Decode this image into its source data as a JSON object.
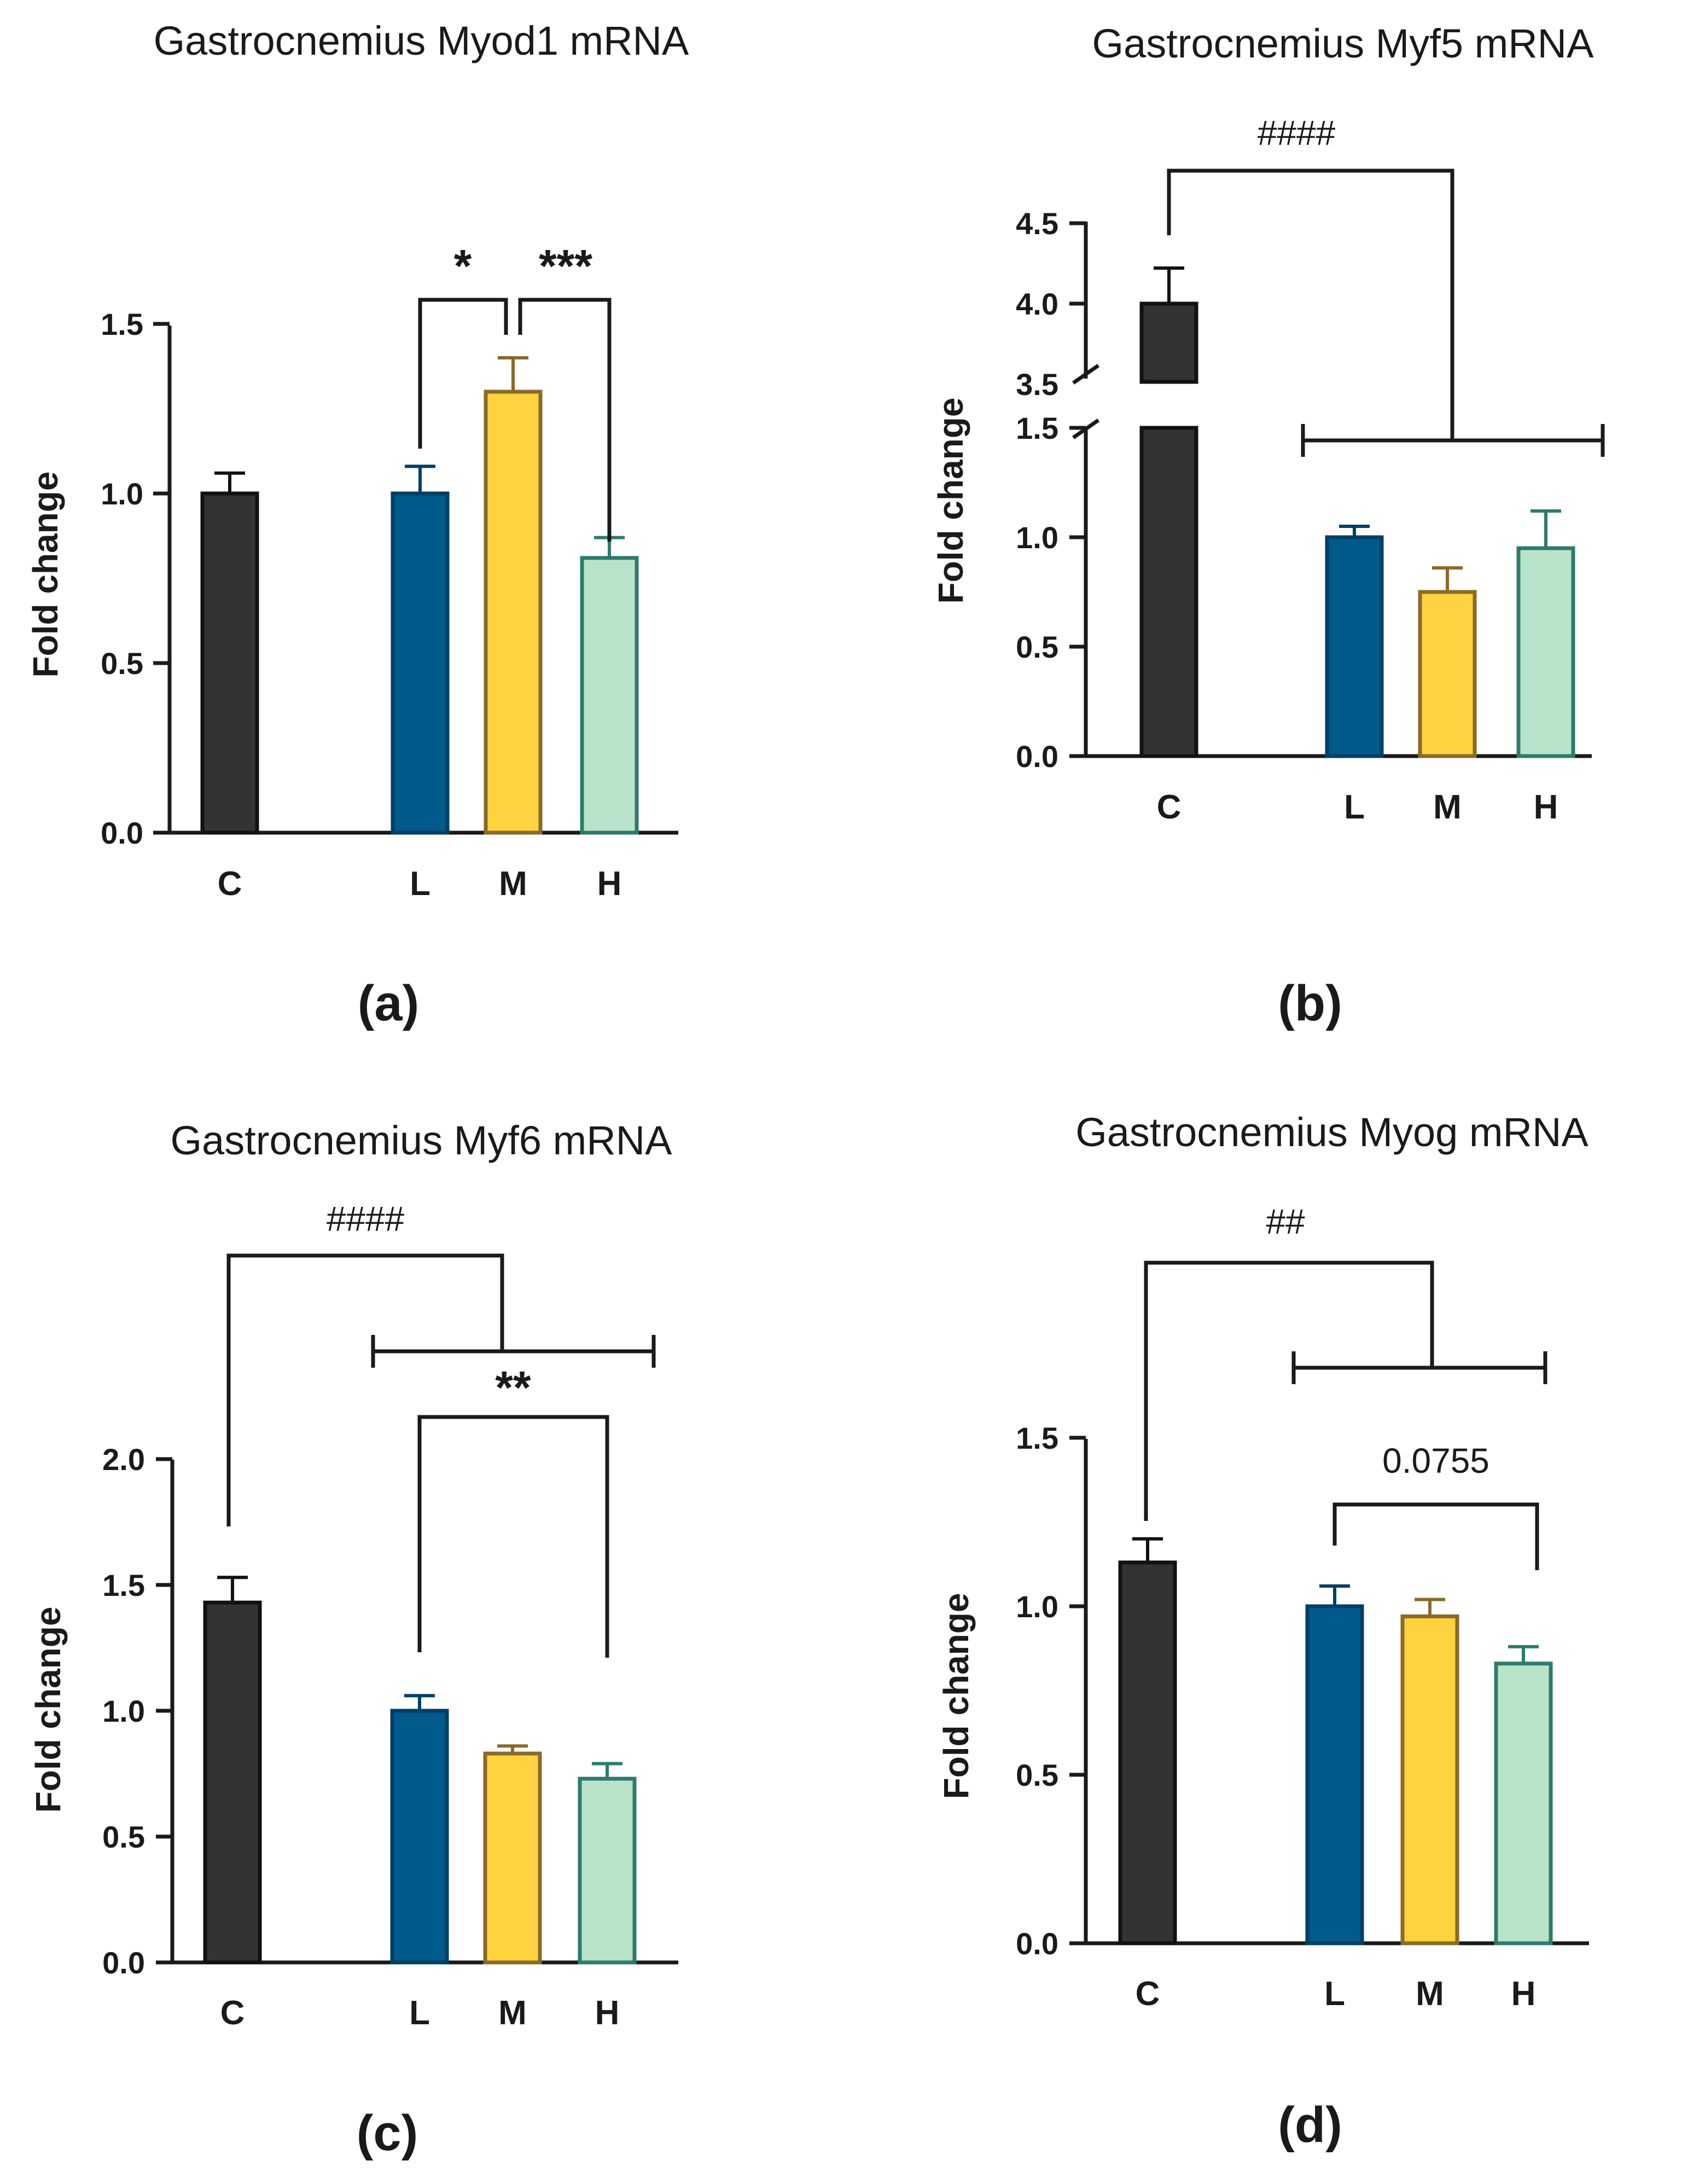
{
  "colors": {
    "C": {
      "fill": "#333333",
      "stroke": "#111111"
    },
    "L": {
      "fill": "#005a8c",
      "stroke": "#003f66"
    },
    "M": {
      "fill": "#ffd23f",
      "stroke": "#8a6a2a"
    },
    "H": {
      "fill": "#b9e3c9",
      "stroke": "#2e7b6e"
    }
  },
  "chart_data": [
    {
      "panel": "(a)",
      "type": "bar",
      "title": "Gastrocnemius Myod1 mRNA",
      "ylabel": "Fold change",
      "xlabel": "",
      "categories": [
        "C",
        "L",
        "M",
        "H"
      ],
      "values": [
        1.0,
        1.0,
        1.3,
        0.81
      ],
      "errors": [
        0.06,
        0.08,
        0.1,
        0.06
      ],
      "ylim": [
        0,
        1.5
      ],
      "yticks": [
        "0.0",
        "0.5",
        "1.0",
        "1.5"
      ],
      "annotations": [
        {
          "label": "*",
          "from": "L",
          "to": "M"
        },
        {
          "label": "***",
          "from": "M",
          "to": "H"
        }
      ]
    },
    {
      "panel": "(b)",
      "type": "bar",
      "title": "Gastrocnemius Myf5 mRNA",
      "ylabel": "Fold change",
      "xlabel": "",
      "categories": [
        "C",
        "L",
        "M",
        "H"
      ],
      "values": [
        4.0,
        1.0,
        0.75,
        0.95
      ],
      "errors": [
        0.22,
        0.05,
        0.11,
        0.17
      ],
      "ylim": [
        0,
        4.5
      ],
      "axis_break": [
        1.5,
        3.5
      ],
      "yticks": [
        "0.0",
        "0.5",
        "1.0",
        "1.5",
        "3.5",
        "4.0",
        "4.5"
      ],
      "annotations": [
        {
          "label": "####",
          "from": "C",
          "to": "L–H"
        }
      ]
    },
    {
      "panel": "(c)",
      "type": "bar",
      "title": "Gastrocnemius Myf6 mRNA",
      "ylabel": "Fold change",
      "xlabel": "",
      "categories": [
        "C",
        "L",
        "M",
        "H"
      ],
      "values": [
        1.43,
        1.0,
        0.83,
        0.73
      ],
      "errors": [
        0.1,
        0.06,
        0.03,
        0.06
      ],
      "ylim": [
        0,
        2.0
      ],
      "yticks": [
        "0.0",
        "0.5",
        "1.0",
        "1.5",
        "2.0"
      ],
      "annotations": [
        {
          "label": "####",
          "from": "C",
          "to": "L–H"
        },
        {
          "label": "**",
          "from": "L",
          "to": "H"
        }
      ]
    },
    {
      "panel": "(d)",
      "type": "bar",
      "title": "Gastrocnemius Myog mRNA",
      "ylabel": "Fold change",
      "xlabel": "",
      "categories": [
        "C",
        "L",
        "M",
        "H"
      ],
      "values": [
        1.13,
        1.0,
        0.97,
        0.83
      ],
      "errors": [
        0.07,
        0.06,
        0.05,
        0.05
      ],
      "ylim": [
        0,
        1.5
      ],
      "yticks": [
        "0.0",
        "0.5",
        "1.0",
        "1.5"
      ],
      "annotations": [
        {
          "label": "##",
          "from": "C",
          "to": "L–H"
        },
        {
          "label": "0.0755",
          "from": "L",
          "to": "H"
        }
      ]
    }
  ]
}
